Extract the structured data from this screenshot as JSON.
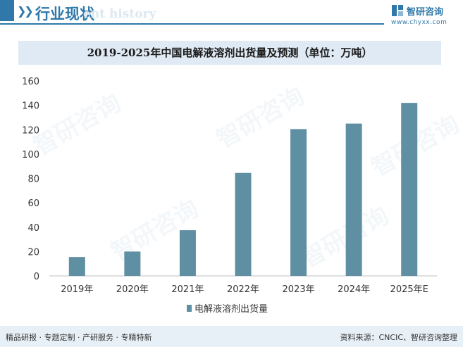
{
  "header": {
    "title": "行业现状",
    "ghost_text": "ent history",
    "logo_name": "智研咨询",
    "logo_url": "www.chyxx.com",
    "accent_color": "#2f78a9"
  },
  "footer": {
    "left_text": "精品研报 · 专题定制 · 产研服务 · 专精特新",
    "source_text": "资料来源：CNCIC、智研咨询整理",
    "background_color": "#e8f0f7"
  },
  "watermark_text": "智研咨询",
  "chart_data": {
    "type": "bar",
    "title": "2019-2025年中国电解液溶剂出货量及预测（单位：万吨）",
    "categories": [
      "2019年",
      "2020年",
      "2021年",
      "2022年",
      "2023年",
      "2024年",
      "2025年E"
    ],
    "series": [
      {
        "name": "电解液溶剂出货量",
        "values": [
          15.5,
          20,
          37.5,
          84.5,
          120.5,
          125,
          142
        ],
        "color": "#5f8fa3"
      }
    ],
    "ylim": [
      0,
      160
    ],
    "yticks": [
      0,
      20,
      40,
      60,
      80,
      100,
      120,
      140,
      160
    ],
    "xlabel": "",
    "ylabel": "",
    "grid": false,
    "legend_position": "bottom"
  }
}
